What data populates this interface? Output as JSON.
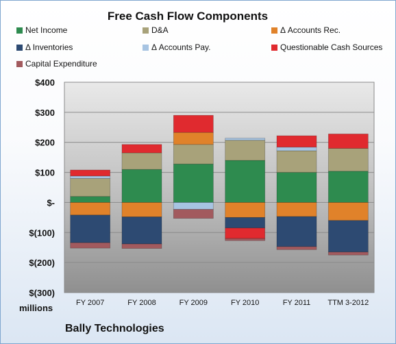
{
  "chart_data": {
    "type": "bar",
    "stacked": true,
    "title": "Free Cash Flow Components",
    "unit_label": "millions",
    "company": "Bally Technologies",
    "categories": [
      "FY 2007",
      "FY 2008",
      "FY 2009",
      "FY 2010",
      "FY 2011",
      "TTM 3-2012"
    ],
    "ylim": [
      -300,
      400
    ],
    "y_ticks": [
      -300,
      -200,
      -100,
      0,
      100,
      200,
      300,
      400
    ],
    "y_tick_labels": [
      "$(300)",
      "$(200)",
      "$(100)",
      "$-",
      "$100",
      "$200",
      "$300",
      "$400"
    ],
    "grid": true,
    "legend_position": "top",
    "series": [
      {
        "name": "Net Income",
        "color": "#2e8b4f",
        "values": [
          20,
          110,
          128,
          140,
          100,
          104
        ]
      },
      {
        "name": "D&A",
        "color": "#a8a27a",
        "values": [
          60,
          55,
          65,
          67,
          72,
          76
        ]
      },
      {
        "name": "Δ Accounts Rec.",
        "color": "#e0822a",
        "values": [
          -42,
          -48,
          40,
          -50,
          -47,
          -60
        ]
      },
      {
        "name": "Δ Inventories",
        "color": "#2d4a72",
        "values": [
          -92,
          -90,
          0,
          -35,
          -100,
          -105
        ]
      },
      {
        "name": "Δ Accounts Pay.",
        "color": "#a7c4e2",
        "values": [
          8,
          0,
          -23,
          7,
          12,
          0
        ]
      },
      {
        "name": "Questionable Cash Sources",
        "color": "#e02a2f",
        "values": [
          20,
          28,
          57,
          -35,
          38,
          48
        ]
      },
      {
        "name": "Capital Expenditure",
        "color": "#a25a5e",
        "values": [
          -18,
          -15,
          -30,
          -7,
          -10,
          -10
        ]
      }
    ]
  }
}
